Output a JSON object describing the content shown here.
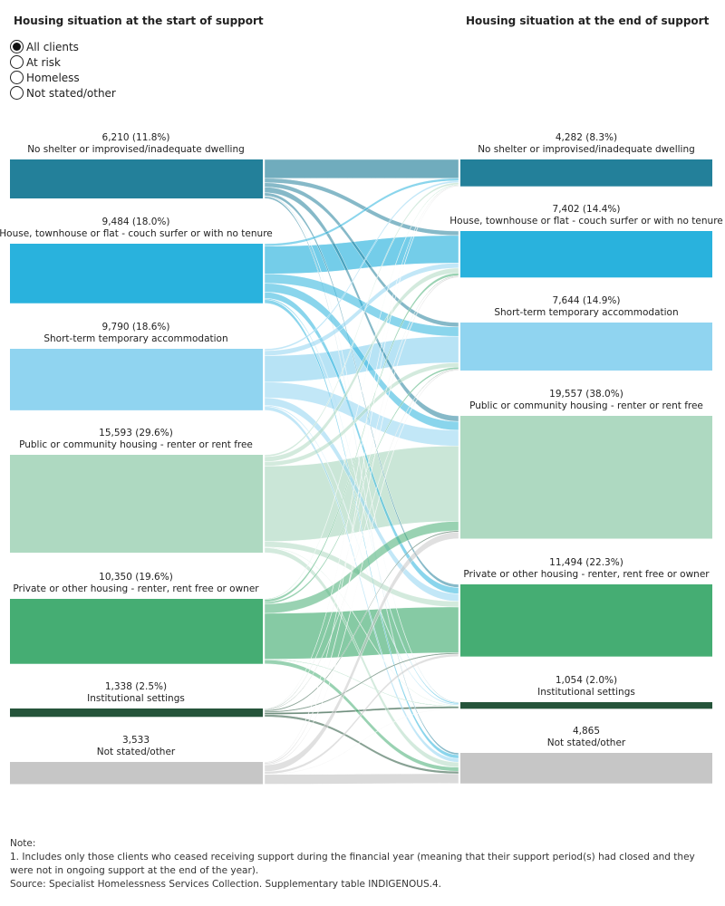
{
  "left_title": "Housing situation at the start of support",
  "right_title": "Housing situation at the end of support",
  "filter": {
    "options": [
      "All clients",
      "At risk",
      "Homeless",
      "Not stated/other"
    ],
    "selected": "All clients"
  },
  "chart_data": {
    "type": "sankey",
    "nodes": [
      {
        "name": "No shelter or improvised/inadequate dwelling",
        "color": "#23809a"
      },
      {
        "name": "House, townhouse or flat - couch surfer or with no tenure",
        "color": "#29b2dd"
      },
      {
        "name": "Short-term temporary accommodation",
        "color": "#90d4f0"
      },
      {
        "name": "Public or community housing - renter or rent free",
        "color": "#aed9c1"
      },
      {
        "name": "Private or other housing - renter, rent free or owner",
        "color": "#45ad73"
      },
      {
        "name": "Institutional settings",
        "color": "#25543a"
      },
      {
        "name": "Not stated/other",
        "color": "#c6c6c6"
      }
    ],
    "start": [
      {
        "value": 6210,
        "label": "6,210 (11.8%)"
      },
      {
        "value": 9484,
        "label": "9,484 (18.0%)"
      },
      {
        "value": 9790,
        "label": "9,790 (18.6%)"
      },
      {
        "value": 15593,
        "label": "15,593 (29.6%)"
      },
      {
        "value": 10350,
        "label": "10,350 (19.6%)"
      },
      {
        "value": 1338,
        "label": "1,338 (2.5%)"
      },
      {
        "value": 3533,
        "label": "3,533"
      }
    ],
    "end": [
      {
        "value": 4282,
        "label": "4,282 (8.3%)"
      },
      {
        "value": 7402,
        "label": "7,402 (14.4%)"
      },
      {
        "value": 7644,
        "label": "7,644 (14.9%)"
      },
      {
        "value": 19557,
        "label": "19,557 (38.0%)"
      },
      {
        "value": 11494,
        "label": "11,494 (22.3%)"
      },
      {
        "value": 1054,
        "label": "1,054 (2.0%)"
      },
      {
        "value": 4865,
        "label": "4,865"
      }
    ],
    "flows_approx": [
      [
        3000,
        700,
        700,
        900,
        500,
        100,
        310
      ],
      [
        400,
        4400,
        1500,
        1400,
        1000,
        200,
        584
      ],
      [
        300,
        800,
        4200,
        2500,
        1200,
        190,
        600
      ],
      [
        300,
        800,
        700,
        12000,
        900,
        100,
        793
      ],
      [
        100,
        400,
        300,
        1500,
        7300,
        100,
        650
      ],
      [
        50,
        100,
        100,
        200,
        200,
        300,
        388
      ],
      [
        132,
        202,
        144,
        1057,
        394,
        64,
        1540
      ]
    ]
  },
  "notes": {
    "heading": "Note:",
    "line1": "1.  Includes only those clients who ceased receiving support during the financial year (meaning that their support period(s) had closed and they were not in ongoing support at the end of the year).",
    "source": "Source: Specialist Homelessness Services Collection. Supplementary table INDIGENOUS.4."
  }
}
